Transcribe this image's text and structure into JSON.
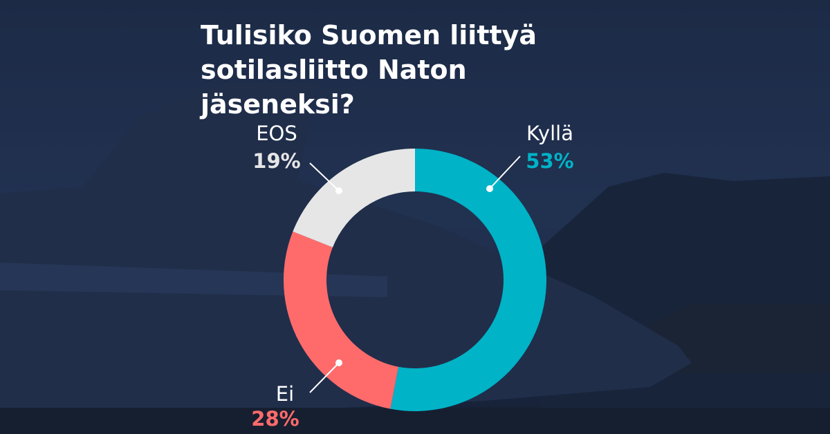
{
  "chart_data": {
    "type": "pie",
    "donut": true,
    "title": "Tulisiko Suomen liittyä sotilasliitto Naton jäseneksi?",
    "categories": [
      "Kyllä",
      "Ei",
      "EOS"
    ],
    "values": [
      53,
      28,
      19
    ],
    "value_labels": [
      "53%",
      "28%",
      "19%"
    ],
    "colors": [
      "#00b3c7",
      "#ff6b6b",
      "#e6e6e6"
    ]
  }
}
